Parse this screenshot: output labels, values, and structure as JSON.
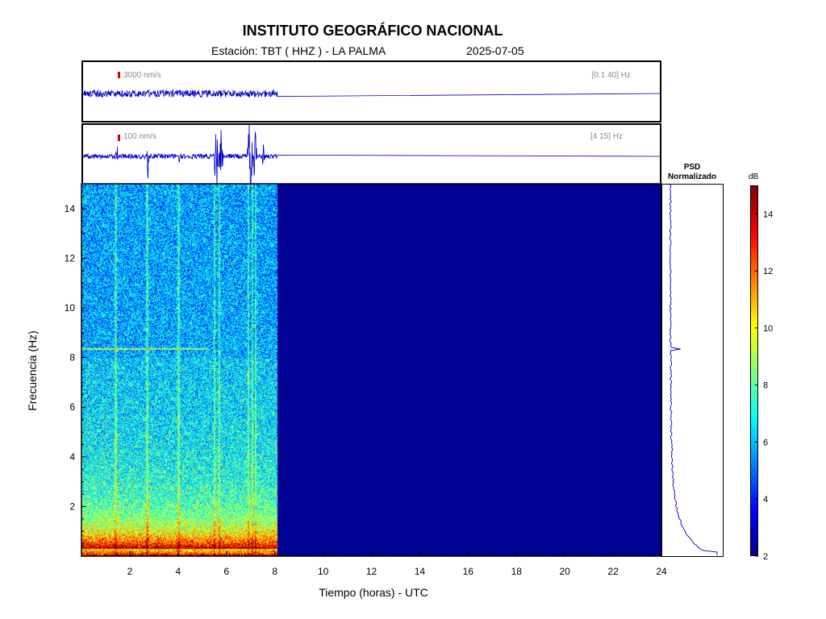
{
  "header": {
    "title": "INSTITUTO GEOGRÁFICO NACIONAL",
    "station": "Estación:  TBT ( HHZ ) - LA PALMA",
    "date": "2025-07-05"
  },
  "traces": [
    {
      "scale_label": "3000 nm/s",
      "band_label": "[0.1 40] Hz"
    },
    {
      "scale_label": "100 nm/s",
      "band_label": "[4 15] Hz"
    }
  ],
  "psd": {
    "title_line1": "PSD",
    "title_line2": "Normalizado"
  },
  "colorbar": {
    "unit": "dB",
    "ticks": [
      2,
      4,
      6,
      8,
      10,
      12,
      14
    ],
    "range": [
      2,
      15
    ],
    "colors": [
      "#00008f",
      "#0000ff",
      "#00ffff",
      "#ffff00",
      "#ff0000",
      "#800000"
    ]
  },
  "chart_data": {
    "type": "heatmap",
    "xlabel": "Tiempo (horas) - UTC",
    "ylabel": "Frecuencia  (Hz)",
    "xlim": [
      0,
      24
    ],
    "ylim": [
      0,
      15
    ],
    "xticks": [
      2,
      4,
      6,
      8,
      10,
      12,
      14,
      16,
      18,
      20,
      22,
      24
    ],
    "yticks": [
      2,
      4,
      6,
      8,
      10,
      12,
      14
    ],
    "data_end_hour": 8.1,
    "spectral_line_hz": 8.35,
    "events_hours": [
      1.4,
      2.7,
      4.0,
      5.5,
      5.7,
      6.9,
      7.05,
      7.2
    ]
  }
}
